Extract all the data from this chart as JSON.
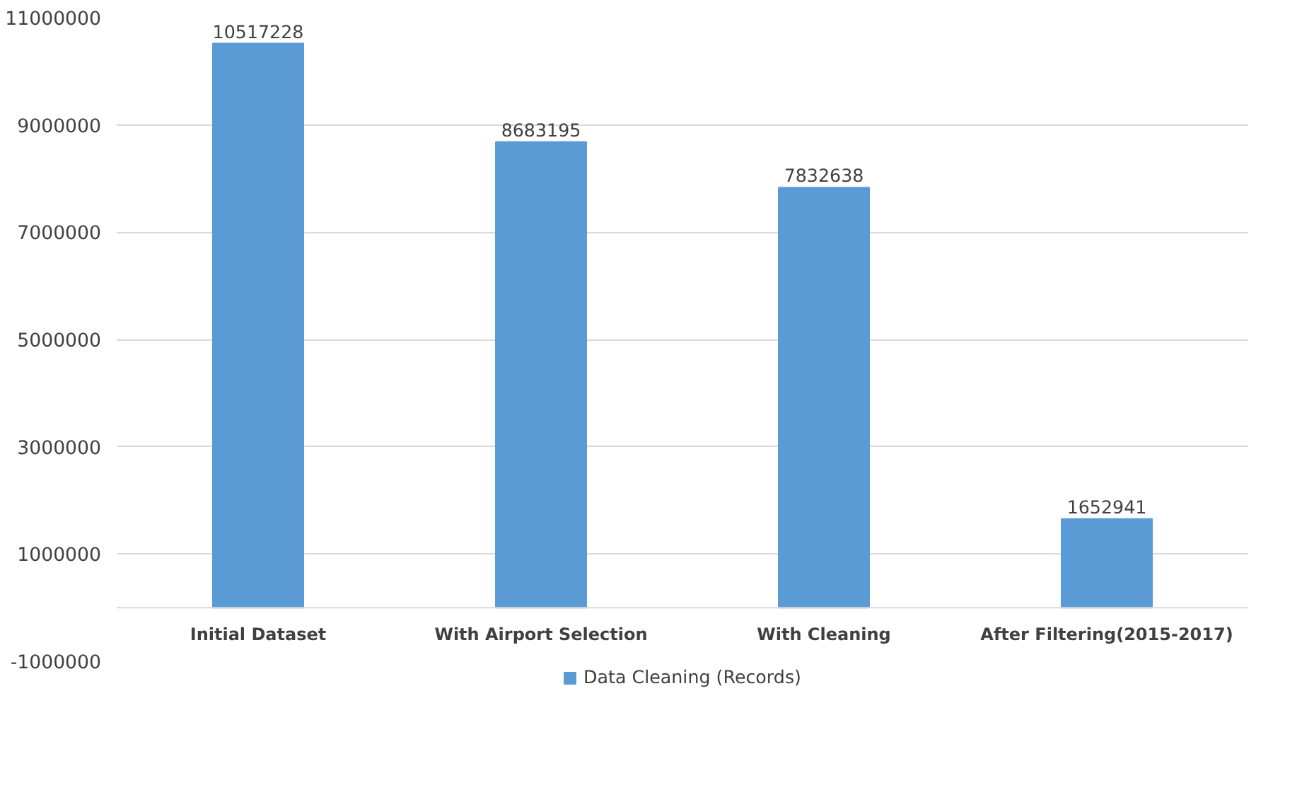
{
  "chart_data": {
    "type": "bar",
    "categories": [
      "Initial Dataset",
      "With Airport Selection",
      "With Cleaning",
      "After Filtering(2015-2017)"
    ],
    "series": [
      {
        "name": "Data Cleaning (Records)",
        "color": "#5b9bd5",
        "values": [
          10517228,
          8683195,
          7832638,
          1652941
        ]
      }
    ],
    "ylim": [
      -1000000,
      11000000
    ],
    "yticks": [
      -1000000,
      1000000,
      3000000,
      5000000,
      7000000,
      9000000,
      11000000
    ],
    "grid": "y",
    "legend": "bottom",
    "data_labels": true
  }
}
